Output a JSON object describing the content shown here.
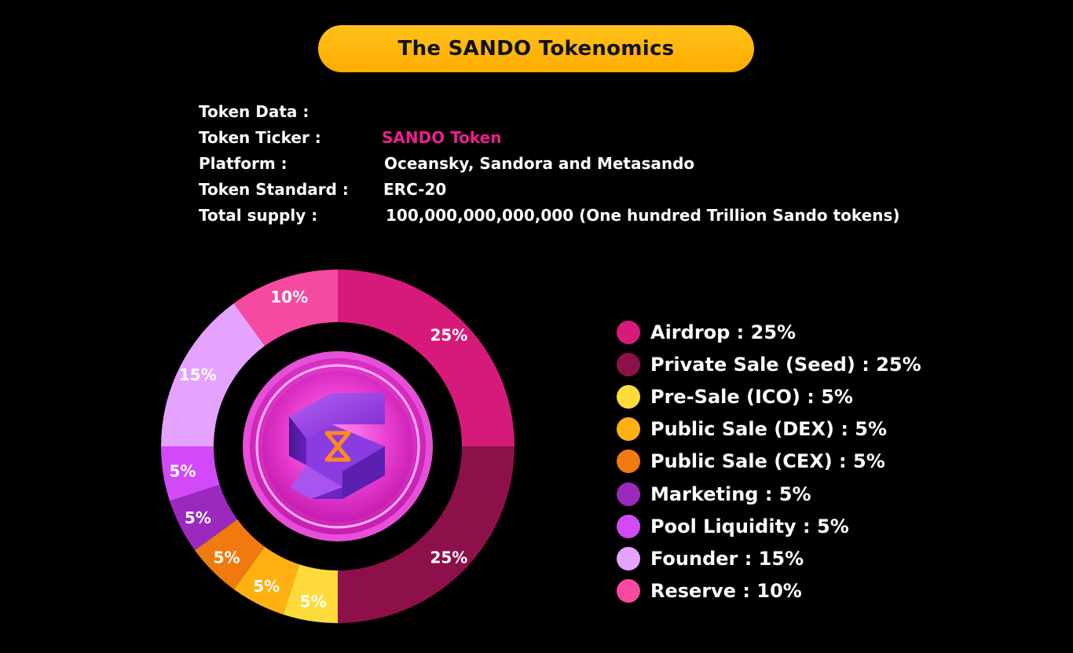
{
  "title": "The SANDO Tokenomics",
  "token_info": {
    "data_label": "Token Data :",
    "ticker_label": "Token Ticker :",
    "ticker_value": "SANDO Token",
    "platform_label": "Platform :",
    "platform_value": "Oceansky, Sandora and Metasando",
    "standard_label": "Token Standard  :",
    "standard_value": "ERC-20",
    "supply_label": "Total supply :",
    "supply_value": "100,000,000,000,000 (One hundred Trillion Sando tokens)"
  },
  "colors": {
    "ticker": "#ec1f8c",
    "title_pill": "#ffb300",
    "background": "#000000"
  },
  "chart_data": {
    "type": "pie",
    "categories": [
      "Airdrop",
      "Private Sale (Seed)",
      "Pre-Sale (ICO)",
      "Public Sale (DEX)",
      "Public Sale (CEX)",
      "Marketing",
      "Pool Liquidity",
      "Founder",
      "Reserve"
    ],
    "values": [
      25,
      25,
      5,
      5,
      5,
      5,
      5,
      15,
      10
    ],
    "slice_labels": [
      "25%",
      "25%",
      "5%",
      "5%",
      "5%",
      "5%",
      "5%",
      "15%",
      "10%"
    ],
    "colors": [
      "#d61a79",
      "#8e104a",
      "#fddb3a",
      "#ffb012",
      "#f07a0f",
      "#9a29be",
      "#d24af7",
      "#e5a3ff",
      "#f54aa0"
    ],
    "legend": [
      {
        "label": "Airdrop : 25%",
        "color": "#d61a79"
      },
      {
        "label": "Private Sale (Seed) : 25%",
        "color": "#8e104a"
      },
      {
        "label": "Pre-Sale (ICO) : 5%",
        "color": "#fddb3a"
      },
      {
        "label": "Public Sale (DEX) : 5%",
        "color": "#ffb012"
      },
      {
        "label": "Public Sale (CEX) : 5%",
        "color": "#f07a0f"
      },
      {
        "label": "Marketing : 5%",
        "color": "#9a29be"
      },
      {
        "label": "Pool Liquidity : 5%",
        "color": "#d24af7"
      },
      {
        "label": "Founder : 15%",
        "color": "#e5a3ff"
      },
      {
        "label": "Reserve : 10%",
        "color": "#f54aa0"
      }
    ],
    "legend_position": "right"
  }
}
